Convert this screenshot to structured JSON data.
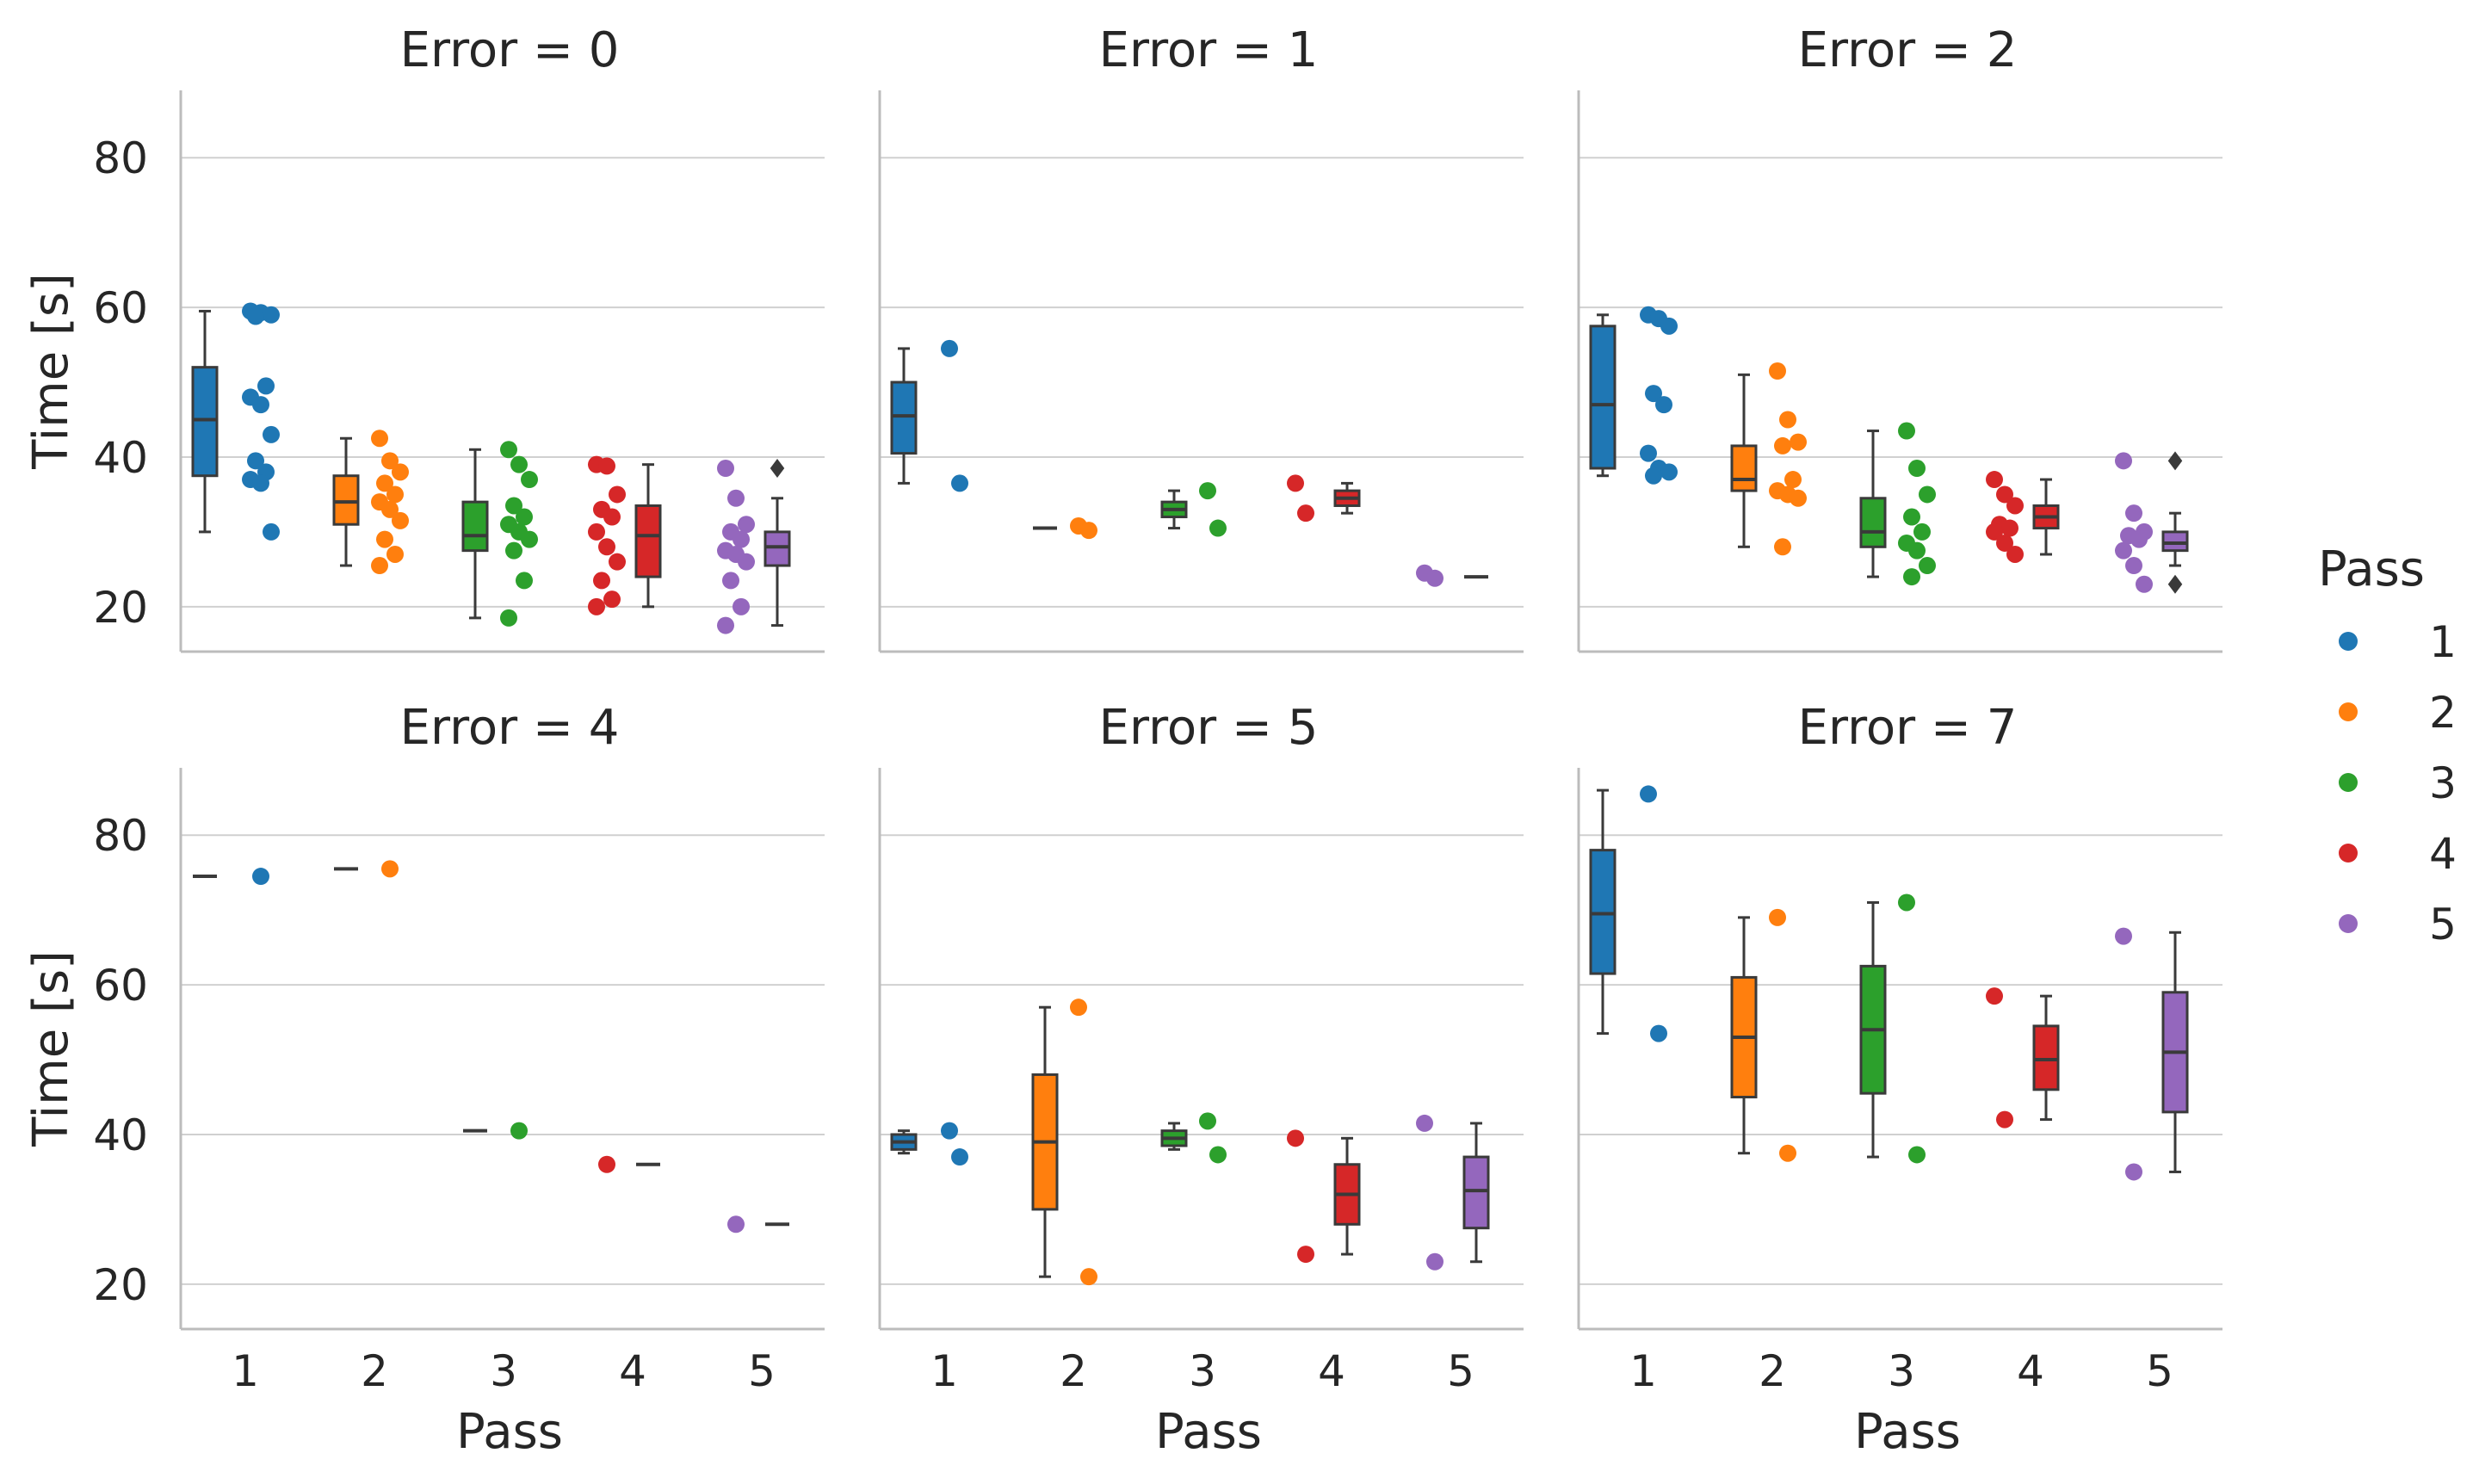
{
  "figure": {
    "legend_title": "Pass",
    "legend_entries": [
      "1",
      "2",
      "3",
      "4",
      "5"
    ]
  },
  "colors": {
    "pass_1": "#1f77b4",
    "pass_2": "#ff7f0e",
    "pass_3": "#2ca02c",
    "pass_4": "#d62728",
    "pass_5": "#9467bd",
    "grid": "#d0d0d0",
    "axis": "#bcbcbc",
    "box_edge": "#3a3a3a"
  },
  "chart_data": [
    {
      "type": "box+strip",
      "title": "Error = 0",
      "xlabel": "",
      "ylabel": "Time [s]",
      "categories": [
        "1",
        "2",
        "3",
        "4",
        "5"
      ],
      "ylim": [
        14,
        89
      ],
      "yticks": [
        20,
        40,
        60,
        80
      ],
      "boxes": [
        {
          "pass": "1",
          "whislo": 30,
          "q1": 37.5,
          "med": 45,
          "q3": 52,
          "whishi": 59.5,
          "fliers": []
        },
        {
          "pass": "2",
          "whislo": 25.5,
          "q1": 31,
          "med": 34,
          "q3": 37.5,
          "whishi": 42.5,
          "fliers": []
        },
        {
          "pass": "3",
          "whislo": 18.5,
          "q1": 27.5,
          "med": 29.5,
          "q3": 34,
          "whishi": 41,
          "fliers": []
        },
        {
          "pass": "4",
          "whislo": 20,
          "q1": 24,
          "med": 29.5,
          "q3": 33.5,
          "whishi": 39,
          "fliers": []
        },
        {
          "pass": "5",
          "whislo": 17.5,
          "q1": 25.5,
          "med": 28,
          "q3": 30,
          "whishi": 34.5,
          "fliers": [
            38.5
          ]
        }
      ],
      "points": [
        {
          "pass": "1",
          "values": [
            59.5,
            59.3,
            59,
            58.8,
            49.5,
            48,
            47,
            43,
            39.5,
            38,
            37,
            36.5,
            30
          ]
        },
        {
          "pass": "2",
          "values": [
            42.5,
            39.5,
            38,
            36.5,
            35,
            34,
            33,
            31.5,
            29,
            27,
            25.5
          ]
        },
        {
          "pass": "3",
          "values": [
            41,
            39,
            37,
            33.5,
            32,
            31,
            30,
            29,
            27.5,
            23.5,
            18.5
          ]
        },
        {
          "pass": "4",
          "values": [
            39,
            38.8,
            35,
            33,
            32,
            30,
            28,
            26,
            23.5,
            21,
            20
          ]
        },
        {
          "pass": "5",
          "values": [
            38.5,
            34.5,
            31,
            30,
            29,
            27.5,
            27,
            26,
            23.5,
            20,
            17.5
          ]
        }
      ]
    },
    {
      "type": "box+strip",
      "title": "Error = 1",
      "xlabel": "",
      "ylabel": "",
      "categories": [
        "1",
        "2",
        "3",
        "4",
        "5"
      ],
      "ylim": [
        14,
        89
      ],
      "yticks": [
        20,
        40,
        60,
        80
      ],
      "boxes": [
        {
          "pass": "1",
          "whislo": 36.5,
          "q1": 40.5,
          "med": 45.5,
          "q3": 50,
          "whishi": 54.5,
          "fliers": []
        },
        {
          "pass": "2",
          "whislo": 30.5,
          "q1": 30.5,
          "med": 30.5,
          "q3": 30.5,
          "whishi": 30.5,
          "fliers": []
        },
        {
          "pass": "3",
          "whislo": 30.5,
          "q1": 32,
          "med": 33,
          "q3": 34,
          "whishi": 35.5,
          "fliers": []
        },
        {
          "pass": "4",
          "whislo": 32.5,
          "q1": 33.5,
          "med": 34.5,
          "q3": 35.5,
          "whishi": 36.5,
          "fliers": []
        },
        {
          "pass": "5",
          "whislo": 24,
          "q1": 24,
          "med": 24,
          "q3": 24,
          "whishi": 24,
          "fliers": []
        }
      ],
      "points": [
        {
          "pass": "1",
          "values": [
            54.5,
            36.5
          ]
        },
        {
          "pass": "2",
          "values": [
            30.8,
            30.2
          ]
        },
        {
          "pass": "3",
          "values": [
            35.5,
            30.5
          ]
        },
        {
          "pass": "4",
          "values": [
            36.5,
            32.5
          ]
        },
        {
          "pass": "5",
          "values": [
            24.5,
            23.8
          ]
        }
      ]
    },
    {
      "type": "box+strip",
      "title": "Error = 2",
      "xlabel": "",
      "ylabel": "",
      "categories": [
        "1",
        "2",
        "3",
        "4",
        "5"
      ],
      "ylim": [
        14,
        89
      ],
      "yticks": [
        20,
        40,
        60,
        80
      ],
      "boxes": [
        {
          "pass": "1",
          "whislo": 37.5,
          "q1": 38.5,
          "med": 47,
          "q3": 57.5,
          "whishi": 59,
          "fliers": []
        },
        {
          "pass": "2",
          "whislo": 28,
          "q1": 35.5,
          "med": 37,
          "q3": 41.5,
          "whishi": 51,
          "fliers": []
        },
        {
          "pass": "3",
          "whislo": 24,
          "q1": 28,
          "med": 30,
          "q3": 34.5,
          "whishi": 43.5,
          "fliers": []
        },
        {
          "pass": "4",
          "whislo": 27,
          "q1": 30.5,
          "med": 32,
          "q3": 33.5,
          "whishi": 37,
          "fliers": []
        },
        {
          "pass": "5",
          "whislo": 25.5,
          "q1": 27.5,
          "med": 28.5,
          "q3": 30,
          "whishi": 32.5,
          "fliers": [
            39.5,
            23
          ]
        }
      ],
      "points": [
        {
          "pass": "1",
          "values": [
            59,
            58.5,
            57.5,
            48.5,
            47,
            40.5,
            38.5,
            38,
            37.5
          ]
        },
        {
          "pass": "2",
          "values": [
            51.5,
            45,
            42,
            41.5,
            37,
            35.5,
            35,
            34.5,
            28
          ]
        },
        {
          "pass": "3",
          "values": [
            43.5,
            38.5,
            35,
            32,
            30,
            28.5,
            27.5,
            25.5,
            24
          ]
        },
        {
          "pass": "4",
          "values": [
            37,
            35,
            33.5,
            31,
            30.5,
            30,
            28.5,
            27
          ]
        },
        {
          "pass": "5",
          "values": [
            39.5,
            32.5,
            30,
            29.5,
            29,
            27.5,
            25.5,
            23
          ]
        }
      ]
    },
    {
      "type": "box+strip",
      "title": "Error = 4",
      "xlabel": "Pass",
      "ylabel": "Time [s]",
      "categories": [
        "1",
        "2",
        "3",
        "4",
        "5"
      ],
      "ylim": [
        14,
        89
      ],
      "yticks": [
        20,
        40,
        60,
        80
      ],
      "boxes": [
        {
          "pass": "1",
          "whislo": 74.5,
          "q1": 74.5,
          "med": 74.5,
          "q3": 74.5,
          "whishi": 74.5,
          "fliers": []
        },
        {
          "pass": "2",
          "whislo": 75.5,
          "q1": 75.5,
          "med": 75.5,
          "q3": 75.5,
          "whishi": 75.5,
          "fliers": []
        },
        {
          "pass": "3",
          "whislo": 40.5,
          "q1": 40.5,
          "med": 40.5,
          "q3": 40.5,
          "whishi": 40.5,
          "fliers": []
        },
        {
          "pass": "4",
          "whislo": 36,
          "q1": 36,
          "med": 36,
          "q3": 36,
          "whishi": 36,
          "fliers": []
        },
        {
          "pass": "5",
          "whislo": 28,
          "q1": 28,
          "med": 28,
          "q3": 28,
          "whishi": 28,
          "fliers": []
        }
      ],
      "points": [
        {
          "pass": "1",
          "values": [
            74.5
          ]
        },
        {
          "pass": "2",
          "values": [
            75.5
          ]
        },
        {
          "pass": "3",
          "values": [
            40.5
          ]
        },
        {
          "pass": "4",
          "values": [
            36
          ]
        },
        {
          "pass": "5",
          "values": [
            28
          ]
        }
      ]
    },
    {
      "type": "box+strip",
      "title": "Error = 5",
      "xlabel": "Pass",
      "ylabel": "",
      "categories": [
        "1",
        "2",
        "3",
        "4",
        "5"
      ],
      "ylim": [
        14,
        89
      ],
      "yticks": [
        20,
        40,
        60,
        80
      ],
      "boxes": [
        {
          "pass": "1",
          "whislo": 37.5,
          "q1": 38,
          "med": 39,
          "q3": 40,
          "whishi": 40.5,
          "fliers": []
        },
        {
          "pass": "2",
          "whislo": 21,
          "q1": 30,
          "med": 39,
          "q3": 48,
          "whishi": 57,
          "fliers": []
        },
        {
          "pass": "3",
          "whislo": 38,
          "q1": 38.5,
          "med": 39.5,
          "q3": 40.5,
          "whishi": 41.5,
          "fliers": []
        },
        {
          "pass": "4",
          "whislo": 24,
          "q1": 28,
          "med": 32,
          "q3": 36,
          "whishi": 39.5,
          "fliers": []
        },
        {
          "pass": "5",
          "whislo": 23,
          "q1": 27.5,
          "med": 32.5,
          "q3": 37,
          "whishi": 41.5,
          "fliers": []
        }
      ],
      "points": [
        {
          "pass": "1",
          "values": [
            40.5,
            37
          ]
        },
        {
          "pass": "2",
          "values": [
            57,
            21
          ]
        },
        {
          "pass": "3",
          "values": [
            41.8,
            37.3
          ]
        },
        {
          "pass": "4",
          "values": [
            39.5,
            24
          ]
        },
        {
          "pass": "5",
          "values": [
            41.5,
            23
          ]
        }
      ]
    },
    {
      "type": "box+strip",
      "title": "Error = 7",
      "xlabel": "Pass",
      "ylabel": "",
      "categories": [
        "1",
        "2",
        "3",
        "4",
        "5"
      ],
      "ylim": [
        14,
        89
      ],
      "yticks": [
        20,
        40,
        60,
        80
      ],
      "boxes": [
        {
          "pass": "1",
          "whislo": 53.5,
          "q1": 61.5,
          "med": 69.5,
          "q3": 78,
          "whishi": 86,
          "fliers": []
        },
        {
          "pass": "2",
          "whislo": 37.5,
          "q1": 45,
          "med": 53,
          "q3": 61,
          "whishi": 69,
          "fliers": []
        },
        {
          "pass": "3",
          "whislo": 37,
          "q1": 45.5,
          "med": 54,
          "q3": 62.5,
          "whishi": 71,
          "fliers": []
        },
        {
          "pass": "4",
          "whislo": 42,
          "q1": 46,
          "med": 50,
          "q3": 54.5,
          "whishi": 58.5,
          "fliers": []
        },
        {
          "pass": "5",
          "whislo": 35,
          "q1": 43,
          "med": 51,
          "q3": 59,
          "whishi": 67,
          "fliers": []
        }
      ],
      "points": [
        {
          "pass": "1",
          "values": [
            85.5,
            53.5
          ]
        },
        {
          "pass": "2",
          "values": [
            69,
            37.5
          ]
        },
        {
          "pass": "3",
          "values": [
            71,
            37.3
          ]
        },
        {
          "pass": "4",
          "values": [
            58.5,
            42
          ]
        },
        {
          "pass": "5",
          "values": [
            66.5,
            35
          ]
        }
      ]
    }
  ]
}
